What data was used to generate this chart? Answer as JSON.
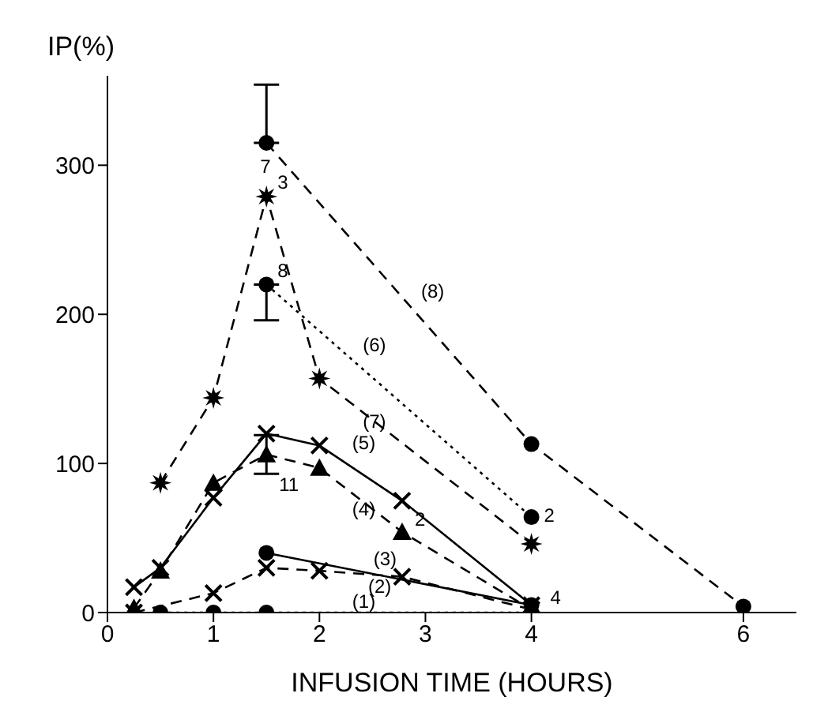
{
  "chart_data": {
    "type": "line",
    "ylabel": "IP(%)",
    "xlabel": "INFUSION TIME (HOURS)",
    "xlim": [
      0,
      6.5
    ],
    "xticks": [
      0,
      1,
      2,
      3,
      4,
      6
    ],
    "ylim": [
      0,
      360
    ],
    "yticks": [
      0,
      100,
      200,
      300
    ],
    "grid": false,
    "legend": false,
    "series": [
      {
        "name": "(1)",
        "color": "#000000",
        "marker": "circle",
        "line_style": "dotted",
        "x": [
          0.5,
          1,
          1.5,
          4
        ],
        "values": [
          0,
          0,
          0,
          0
        ]
      },
      {
        "name": "(2)",
        "color": "#000000",
        "marker": "cross",
        "line_style": "dashed",
        "x": [
          0.25,
          1,
          1.5,
          2,
          2.78,
          4
        ],
        "values": [
          0,
          13,
          30,
          28,
          24,
          2
        ]
      },
      {
        "name": "(3)",
        "color": "#000000",
        "marker": "circle",
        "line_style": "solid",
        "x": [
          1.5,
          4
        ],
        "values": [
          40,
          5
        ]
      },
      {
        "name": "(4)",
        "color": "#000000",
        "marker": "triangle",
        "line_style": "dashed",
        "x": [
          0.25,
          0.5,
          1,
          1.5,
          2,
          2.78,
          4
        ],
        "values": [
          3,
          28,
          87,
          106,
          97,
          54,
          2
        ],
        "errors": [
          null,
          null,
          null,
          13,
          null,
          null,
          null
        ]
      },
      {
        "name": "(5)",
        "color": "#000000",
        "marker": "cross",
        "line_style": "solid",
        "x": [
          0.25,
          0.5,
          1,
          1.5,
          2,
          2.78,
          4
        ],
        "values": [
          17,
          30,
          77,
          120,
          112,
          75,
          5
        ]
      },
      {
        "name": "(6)",
        "color": "#000000",
        "marker": "circle",
        "line_style": "dotted",
        "x": [
          1.5,
          4
        ],
        "values": [
          220,
          64
        ],
        "errors": [
          [
            196,
            220
          ],
          null
        ]
      },
      {
        "name": "(7)",
        "color": "#000000",
        "marker": "star",
        "line_style": "dashed",
        "x": [
          0.5,
          1,
          1.5,
          2,
          4
        ],
        "values": [
          87,
          144,
          279,
          157,
          46
        ]
      },
      {
        "name": "(8)",
        "color": "#000000",
        "marker": "circle",
        "line_style": "dashed",
        "x": [
          1.5,
          4,
          6
        ],
        "values": [
          315,
          113,
          4
        ],
        "errors": [
          [
            315,
            354
          ],
          null,
          null
        ]
      }
    ],
    "annotations": [
      {
        "text": "7",
        "x": 1.5,
        "y": 315
      },
      {
        "text": "3",
        "x": 1.5,
        "y": 279
      },
      {
        "text": "8",
        "x": 1.5,
        "y": 220
      },
      {
        "text": "11",
        "x": 1.5,
        "y": 106
      },
      {
        "text": "2",
        "x": 2.78,
        "y": 54
      },
      {
        "text": "2",
        "x": 4,
        "y": 64
      },
      {
        "text": "4",
        "x": 4,
        "y": 5
      }
    ]
  }
}
